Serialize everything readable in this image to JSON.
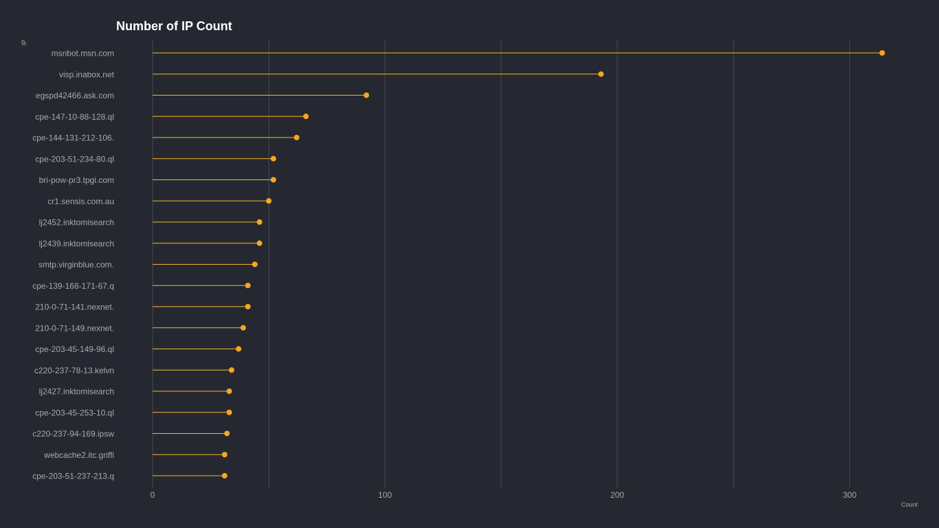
{
  "chart_data": {
    "type": "lollipop",
    "title": "Number of IP Count",
    "xlabel": "Count",
    "ylabel": "IP",
    "xlim": [
      0,
      320
    ],
    "xticks": [
      0,
      100,
      200,
      300
    ],
    "grid": true,
    "colors": {
      "background": "#252830",
      "stem": "#f5b724",
      "dot": "#f5a623",
      "grid": "#45484f",
      "text": "#a9a9ae",
      "title": "#ffffff"
    },
    "categories": [
      "msnbot.msn.com",
      "visp.inabox.net",
      "egspd42466.ask.com",
      "cpe-147-10-88-128.ql",
      "cpe-144-131-212-106.",
      "cpe-203-51-234-80.ql",
      "bri-pow-pr3.tpgi.com",
      "cr1.sensis.com.au",
      "lj2452.inktomisearch",
      "lj2439.inktomisearch",
      "smtp.virginblue.com.",
      "cpe-139-168-171-67.q",
      "210-0-71-141.nexnet.",
      "210-0-71-149.nexnet.",
      "cpe-203-45-149-96.ql",
      "c220-237-78-13.kelvn",
      "lj2427.inktomisearch",
      "cpe-203-45-253-10.ql",
      "c220-237-94-169.ipsw",
      "webcache2.itc.griffi",
      "cpe-203-51-237-213.q"
    ],
    "values": [
      314,
      193,
      92,
      66,
      62,
      52,
      52,
      50,
      46,
      46,
      44,
      41,
      41,
      39,
      37,
      34,
      33,
      33,
      32,
      31,
      31
    ]
  }
}
